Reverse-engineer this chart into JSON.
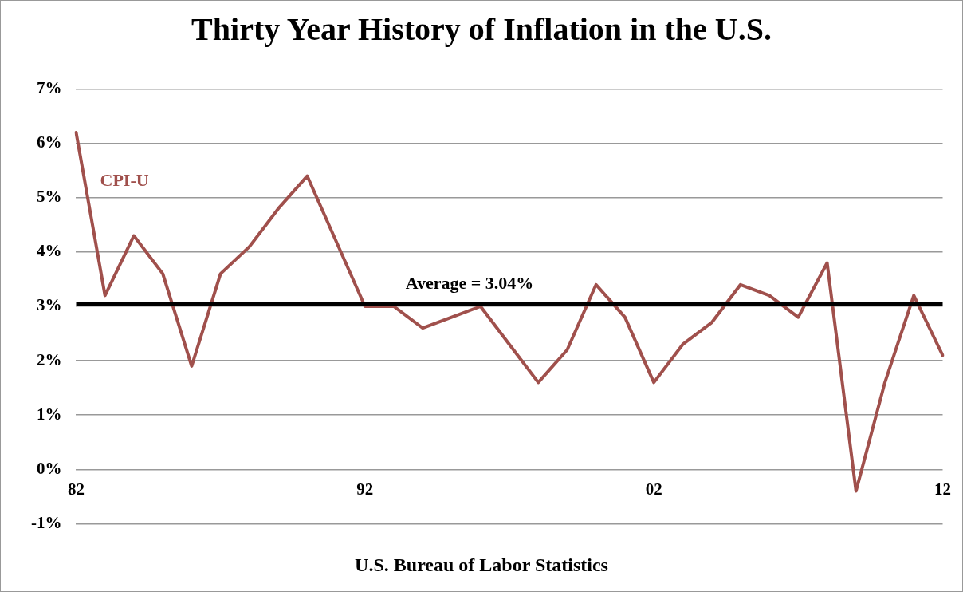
{
  "chart_data": {
    "type": "line",
    "title": "Thirty Year History of Inflation in the U.S.",
    "xlabel": "U.S. Bureau of Labor Statistics",
    "categories": [
      "82",
      null,
      null,
      null,
      null,
      null,
      null,
      null,
      null,
      null,
      "92",
      null,
      null,
      null,
      null,
      null,
      null,
      null,
      null,
      null,
      "02",
      null,
      null,
      null,
      null,
      null,
      null,
      null,
      null,
      null,
      "12"
    ],
    "series": [
      {
        "name": "CPI-U",
        "color": "#a0504c",
        "values": [
          6.2,
          3.2,
          4.3,
          3.6,
          1.9,
          3.6,
          4.1,
          4.8,
          5.4,
          4.2,
          3.0,
          3.0,
          2.6,
          2.8,
          3.0,
          2.3,
          1.6,
          2.2,
          3.4,
          2.8,
          1.6,
          2.3,
          2.7,
          3.4,
          3.2,
          2.8,
          3.8,
          -0.4,
          1.6,
          3.2,
          2.1
        ]
      }
    ],
    "ylim": [
      -1,
      7
    ],
    "yticks": [
      {
        "value": -1,
        "label": "-1%"
      },
      {
        "value": 0,
        "label": "0%"
      },
      {
        "value": 1,
        "label": "1%"
      },
      {
        "value": 2,
        "label": "2%"
      },
      {
        "value": 3,
        "label": "3%"
      },
      {
        "value": 4,
        "label": "4%"
      },
      {
        "value": 5,
        "label": "5%"
      },
      {
        "value": 6,
        "label": "6%"
      },
      {
        "value": 7,
        "label": "7%"
      }
    ],
    "ref_lines": [
      {
        "axis": "y",
        "value": 3.04,
        "label": "Average = 3.04%",
        "color": "#000000"
      }
    ],
    "grid": "y",
    "legend": false,
    "marker": "none",
    "line_style": "solid"
  }
}
